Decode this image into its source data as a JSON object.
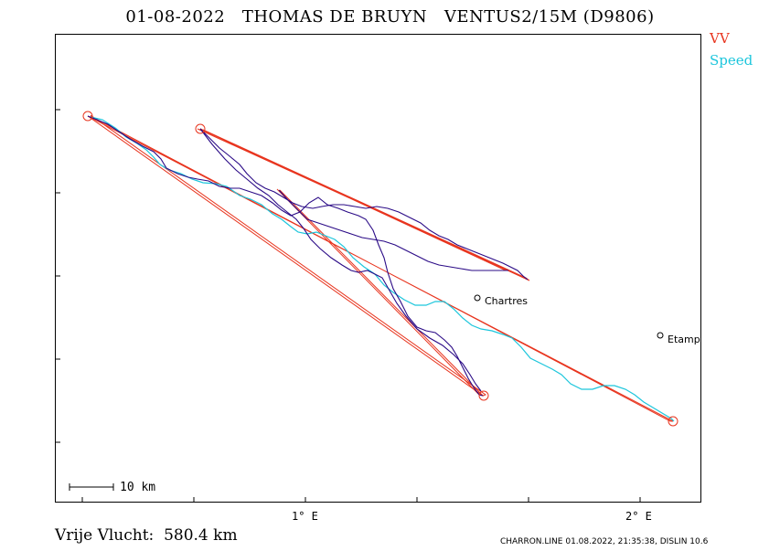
{
  "title": "01-08-2022   THOMAS DE BRUYN   VENTUS2/15M (D9806)",
  "legend": [
    {
      "label": "VV",
      "color": "#e8351f"
    },
    {
      "label": "Speed",
      "color": "#1cc6dc"
    }
  ],
  "axis": {
    "x_ticks": [
      "1° E",
      "2° E"
    ]
  },
  "scale_bar": {
    "label": "10 km"
  },
  "towns": [
    {
      "name": "Chartres"
    },
    {
      "name": "Etampes"
    }
  ],
  "footer": {
    "distance_text": "Vrije Vlucht:  580.4 km",
    "credit": "CHARRON.LINE 01.08.2022, 21:35:38, DISLIN 10.6"
  },
  "colors": {
    "task": "#e8351f",
    "track_primary": "#2a0a86",
    "track_secondary": "#1cc6dc"
  }
}
